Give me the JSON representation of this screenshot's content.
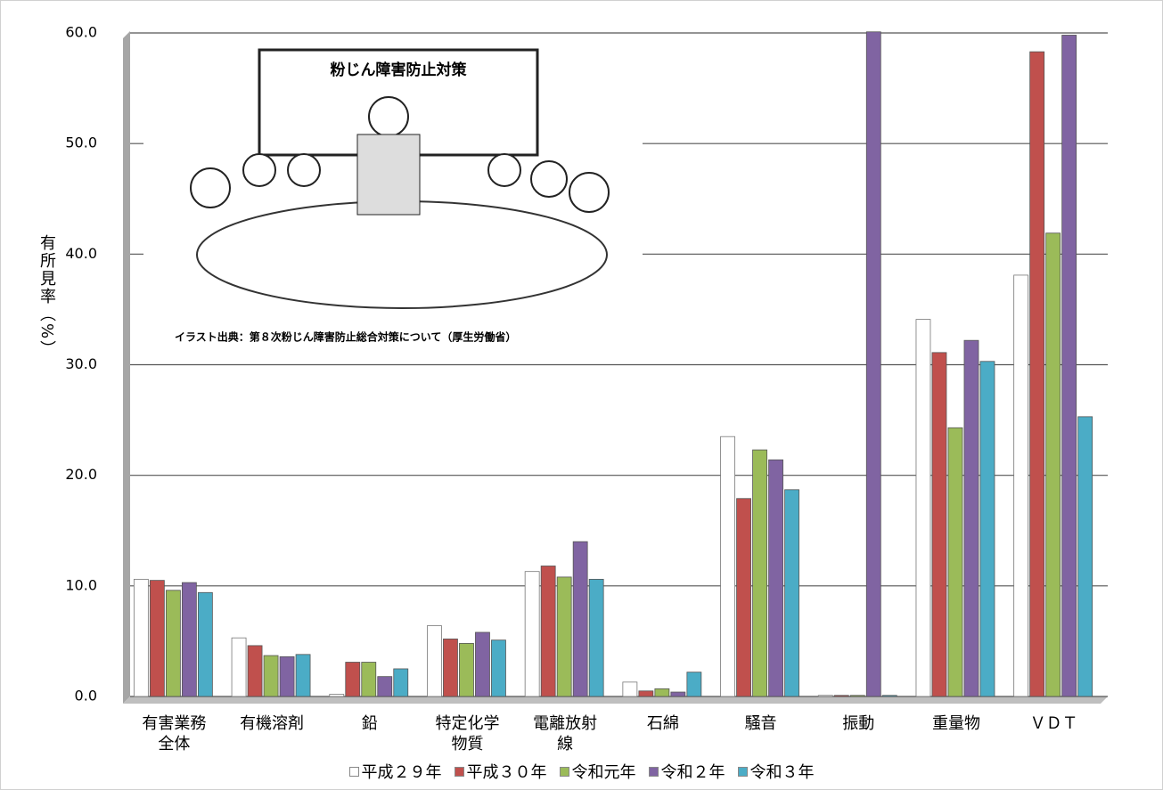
{
  "chart_data": {
    "type": "bar",
    "y_label": "有所見率（%）",
    "categories": [
      "有害業務\n全体",
      "有機溶剤",
      "鉛",
      "特定化学\n物質",
      "電離放射\n線",
      "石綿",
      "騒音",
      "振動",
      "重量物",
      "ＶＤＴ"
    ],
    "series": [
      {
        "name": "平成２９年",
        "color": "#ffffff",
        "values": [
          10.6,
          5.3,
          0.2,
          6.4,
          11.3,
          1.3,
          23.5,
          0.1,
          34.1,
          38.1
        ]
      },
      {
        "name": "平成３０年",
        "color": "#c0504d",
        "values": [
          10.5,
          4.6,
          3.1,
          5.2,
          11.8,
          0.5,
          17.9,
          0.1,
          31.1,
          58.3
        ]
      },
      {
        "name": "令和元年",
        "color": "#9bbb59",
        "values": [
          9.6,
          3.7,
          3.1,
          4.8,
          10.8,
          0.7,
          22.3,
          0.1,
          24.3,
          41.9
        ]
      },
      {
        "name": "令和２年",
        "color": "#8064a2",
        "values": [
          10.3,
          3.6,
          1.8,
          5.8,
          14.0,
          0.4,
          21.4,
          60.1,
          32.2,
          59.8
        ]
      },
      {
        "name": "令和３年",
        "color": "#4bacc6",
        "values": [
          9.4,
          3.8,
          2.5,
          5.1,
          10.6,
          2.2,
          18.7,
          0.1,
          30.3,
          25.3
        ]
      }
    ],
    "ylim": [
      0,
      60
    ],
    "yticks": [
      {
        "value": 0,
        "label": "0.0"
      },
      {
        "value": 10,
        "label": "10.0"
      },
      {
        "value": 20,
        "label": "20.0"
      },
      {
        "value": 30,
        "label": "30.0"
      },
      {
        "value": 40,
        "label": "40.0"
      },
      {
        "value": 50,
        "label": "50.0"
      },
      {
        "value": 60,
        "label": "60.0"
      }
    ],
    "grid": true,
    "legend": "bottom"
  },
  "illustration": {
    "board_title": "粉じん障害防止対策",
    "caption": "イラスト出典：第８次粉じん障害防止総合対策について（厚生労働省）"
  }
}
